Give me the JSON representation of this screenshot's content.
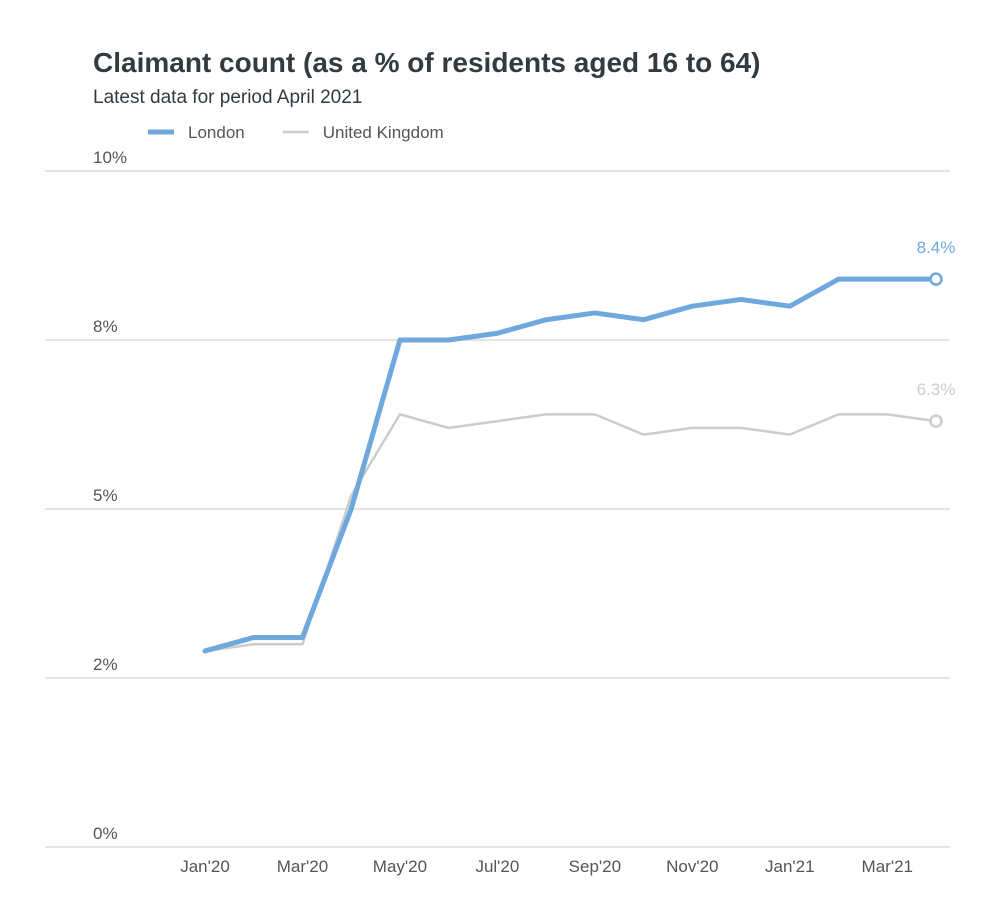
{
  "chart_data": {
    "type": "line",
    "title": "Claimant count (as a % of residents aged 16 to 64)",
    "subtitle": "Latest data for period April 2021",
    "categories": [
      "Jan'20",
      null,
      "Mar'20",
      null,
      "May'20",
      null,
      "Jul'20",
      null,
      "Sep'20",
      null,
      "Nov'20",
      null,
      "Jan'21",
      null,
      "Mar'21",
      null
    ],
    "series": [
      {
        "name": "London",
        "color": "#6fa8dc",
        "values": [
          2.9,
          3.1,
          3.1,
          5.0,
          7.5,
          7.5,
          7.6,
          7.8,
          7.9,
          7.8,
          8.0,
          8.1,
          8.0,
          8.4,
          8.4,
          8.4
        ],
        "value_labels": [
          null,
          null,
          null,
          null,
          null,
          null,
          null,
          null,
          null,
          null,
          null,
          null,
          null,
          null,
          null,
          "8.4%"
        ]
      },
      {
        "name": "United Kingdom",
        "color": "#cccccc",
        "values": [
          2.9,
          3.0,
          3.0,
          5.2,
          6.4,
          6.2,
          6.3,
          6.4,
          6.4,
          6.1,
          6.2,
          6.2,
          6.1,
          6.4,
          6.4,
          6.3
        ],
        "value_labels": [
          null,
          null,
          null,
          null,
          null,
          null,
          null,
          null,
          null,
          null,
          null,
          null,
          null,
          null,
          null,
          "6.3%"
        ]
      }
    ],
    "ylim": [
      0,
      10
    ],
    "yticks": [
      {
        "value": 0,
        "label": "0%"
      },
      {
        "value": 2.5,
        "label": "2%"
      },
      {
        "value": 5,
        "label": "5%"
      },
      {
        "value": 7.5,
        "label": "8%"
      },
      {
        "value": 10,
        "label": "10%"
      }
    ],
    "grid": true
  }
}
